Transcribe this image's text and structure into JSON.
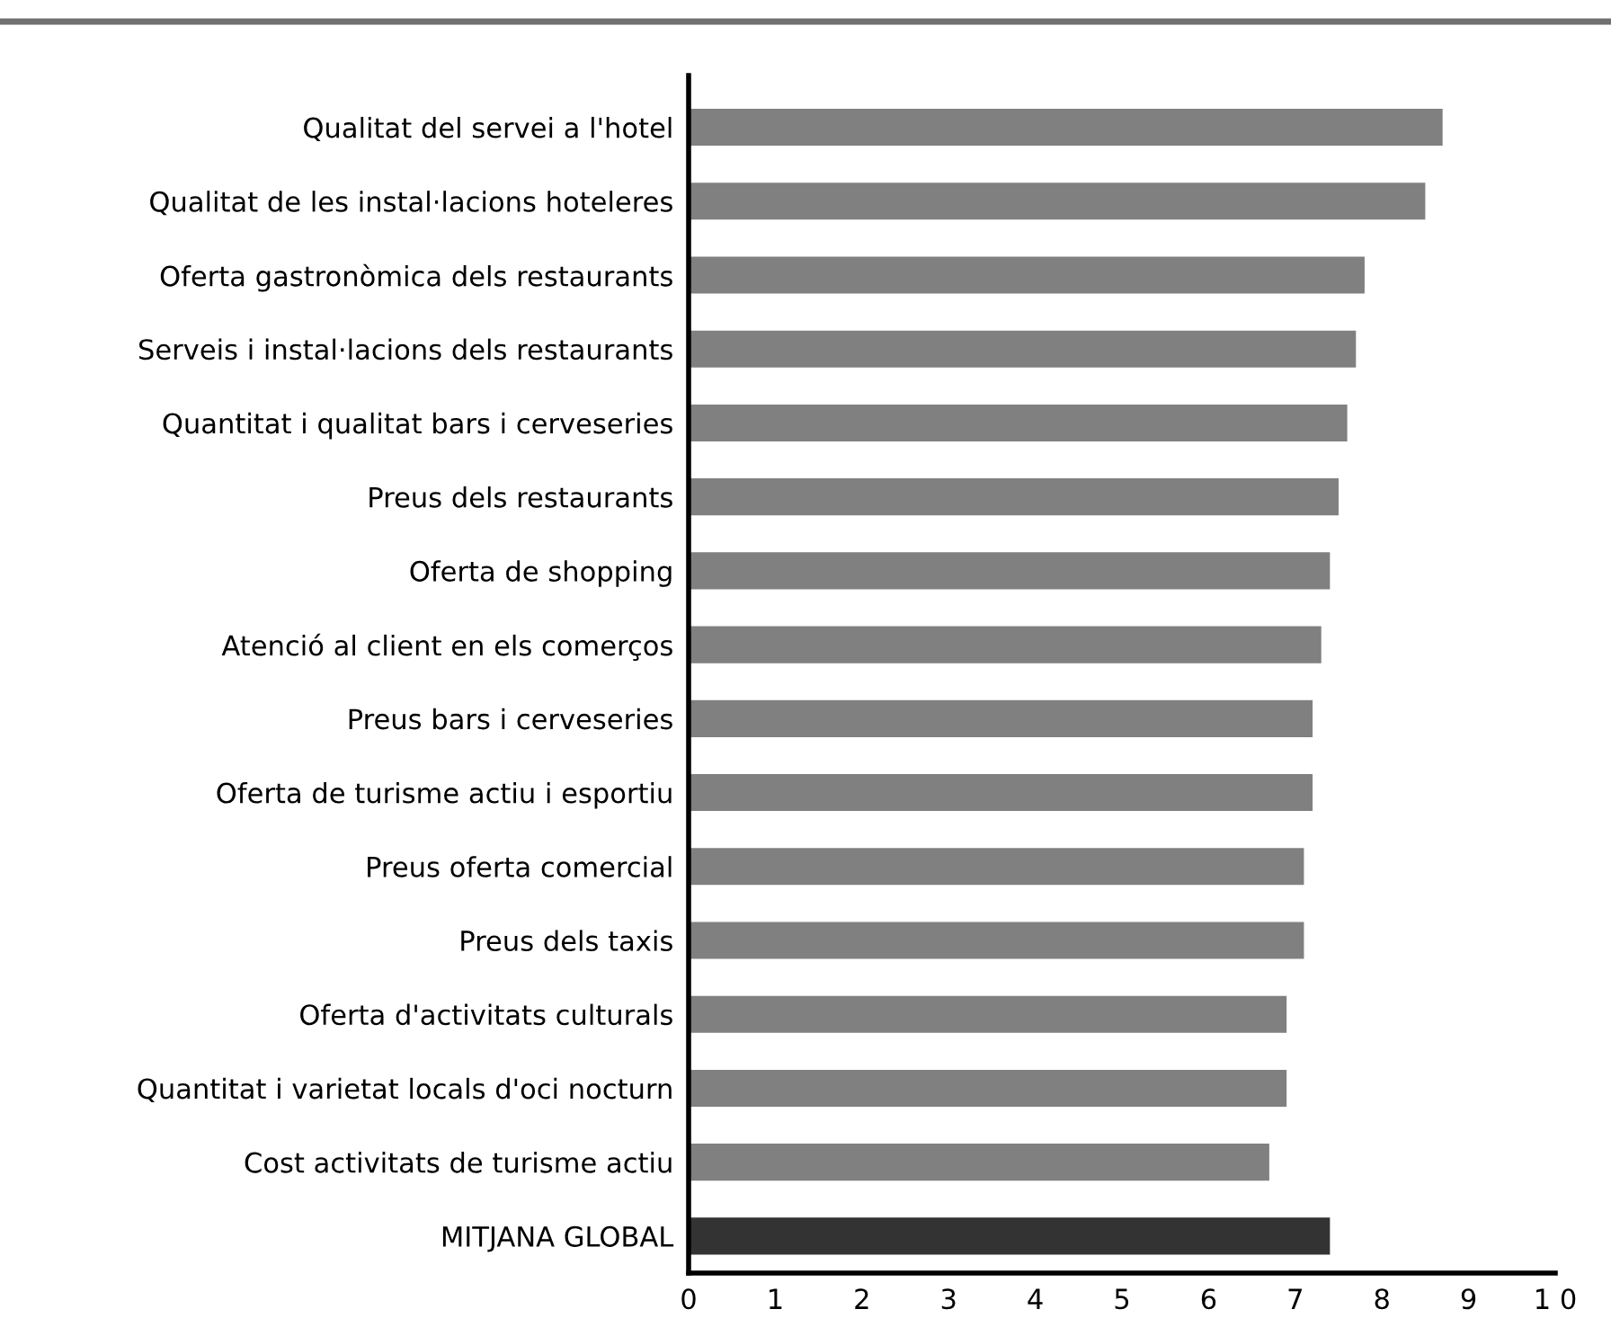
{
  "chart_data": {
    "type": "bar",
    "orientation": "horizontal",
    "categories": [
      "Qualitat del servei a l'hotel",
      "Qualitat de les instal·lacions hoteleres",
      "Oferta gastronòmica dels restaurants",
      "Serveis i instal·lacions dels restaurants",
      "Quantitat i qualitat bars i cerveseries",
      "Preus dels restaurants",
      "Oferta de shopping",
      "Atenció al client en els comerços",
      "Preus bars i cerveseries",
      "Oferta de turisme actiu i esportiu",
      "Preus oferta comercial",
      "Preus dels taxis",
      "Oferta d'activitats culturals",
      "Quantitat i varietat locals d'oci nocturn",
      "Cost activitats de turisme actiu",
      "MITJANA GLOBAL"
    ],
    "values": [
      8.7,
      8.5,
      7.8,
      7.7,
      7.6,
      7.5,
      7.4,
      7.3,
      7.2,
      7.2,
      7.1,
      7.1,
      6.9,
      6.9,
      6.7,
      7.4
    ],
    "colors": [
      "#808080",
      "#808080",
      "#808080",
      "#808080",
      "#808080",
      "#808080",
      "#808080",
      "#808080",
      "#808080",
      "#808080",
      "#808080",
      "#808080",
      "#808080",
      "#808080",
      "#808080",
      "#333333"
    ],
    "xlim": [
      0,
      10
    ],
    "xticks": [
      0,
      1,
      2,
      3,
      4,
      5,
      6,
      7,
      8,
      9,
      {
        "value": 10,
        "label": "1 0"
      }
    ],
    "grid": false,
    "legend": false
  }
}
